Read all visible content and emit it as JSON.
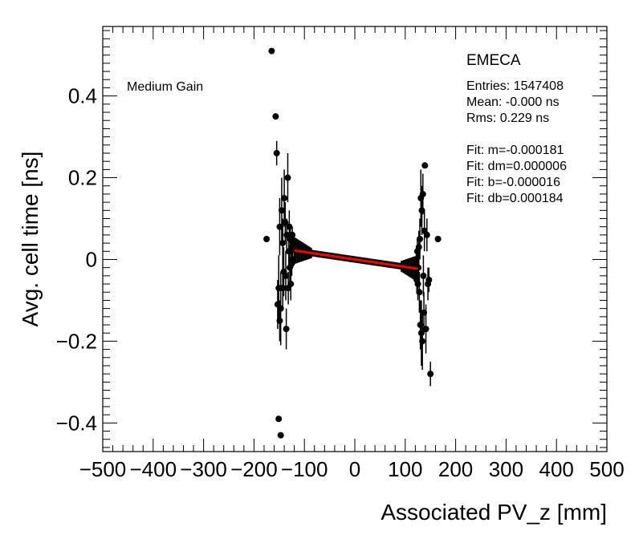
{
  "chart_data": {
    "type": "scatter",
    "title": "EMECA",
    "annotation": "Medium Gain",
    "xlabel": "Associated PV_z [mm]",
    "ylabel": "Avg. cell time [ns]",
    "xlim": [
      -500,
      500
    ],
    "ylim": [
      -0.47,
      0.57
    ],
    "x_ticks": [
      -500,
      -400,
      -300,
      -200,
      -100,
      0,
      100,
      200,
      300,
      400,
      500
    ],
    "x_tick_labels": [
      "−500",
      "−400",
      "−300",
      "−200",
      "−100",
      "0",
      "100",
      "200",
      "300",
      "400",
      "500"
    ],
    "y_ticks": [
      -0.4,
      -0.2,
      0,
      0.2,
      0.4
    ],
    "y_tick_labels": [
      "−0.4",
      "−0.2",
      "0",
      "0.2",
      "0.4"
    ],
    "stats": [
      "Entries: 1547408",
      "Mean: -0.000 ns",
      "Rms: 0.229 ns",
      "",
      "Fit: m=-0.000181",
      "Fit: dm=0.000006",
      "Fit: b=-0.000016",
      "Fit: db=0.000184"
    ],
    "fit_line": {
      "color": "#ff0000",
      "x": [
        -120,
        125
      ],
      "y": [
        0.0218,
        -0.0227
      ]
    },
    "marker_color": "#000000",
    "grid": false,
    "points": [
      {
        "x": -175,
        "y": 0.05,
        "err": 0.0
      },
      {
        "x": -165,
        "y": 0.51,
        "err": 0.0
      },
      {
        "x": -157,
        "y": 0.35,
        "err": 0.0
      },
      {
        "x": -155,
        "y": 0.26,
        "err": 0.03
      },
      {
        "x": -151,
        "y": -0.39,
        "err": 0.0
      },
      {
        "x": -147,
        "y": -0.43,
        "err": 0.0
      },
      {
        "x": -153,
        "y": -0.11,
        "err": 0.06
      },
      {
        "x": -151,
        "y": -0.07,
        "err": 0.08
      },
      {
        "x": -149,
        "y": -0.15,
        "err": 0.05
      },
      {
        "x": -149,
        "y": 0.08,
        "err": 0.07
      },
      {
        "x": -147,
        "y": -0.12,
        "err": 0.09
      },
      {
        "x": -145,
        "y": 0.12,
        "err": 0.08
      },
      {
        "x": -143,
        "y": -0.07,
        "err": 0.05
      },
      {
        "x": -143,
        "y": 0.04,
        "err": 0.06
      },
      {
        "x": -141,
        "y": -0.03,
        "err": 0.06
      },
      {
        "x": -140,
        "y": 0.15,
        "err": 0.07
      },
      {
        "x": -138,
        "y": 0.09,
        "err": 0.05
      },
      {
        "x": -137,
        "y": -0.04,
        "err": 0.06
      },
      {
        "x": -136,
        "y": -0.17,
        "err": 0.05
      },
      {
        "x": -135,
        "y": 0.06,
        "err": 0.04
      },
      {
        "x": -133,
        "y": 0.2,
        "err": 0.06
      },
      {
        "x": -132,
        "y": -0.07,
        "err": 0.04
      },
      {
        "x": -131,
        "y": 0.02,
        "err": 0.04
      },
      {
        "x": -130,
        "y": 0.08,
        "err": 0.04
      },
      {
        "x": -129,
        "y": -0.02,
        "err": 0.04
      },
      {
        "x": -128,
        "y": 0.05,
        "err": 0.03
      },
      {
        "x": -127,
        "y": -0.06,
        "err": 0.04
      },
      {
        "x": -126,
        "y": 0.03,
        "err": 0.03
      },
      {
        "x": -125,
        "y": -0.01,
        "err": 0.03
      },
      {
        "x": -124,
        "y": 0.06,
        "err": 0.02
      },
      {
        "x": -123,
        "y": 0.0,
        "err": 0.02
      },
      {
        "x": -122,
        "y": 0.04,
        "err": 0.02
      },
      {
        "x": 122,
        "y": -0.01,
        "err": 0.03
      },
      {
        "x": 123,
        "y": -0.05,
        "err": 0.03
      },
      {
        "x": 124,
        "y": 0.02,
        "err": 0.03
      },
      {
        "x": 125,
        "y": -0.06,
        "err": 0.04
      },
      {
        "x": 126,
        "y": -0.02,
        "err": 0.04
      },
      {
        "x": 127,
        "y": 0.03,
        "err": 0.04
      },
      {
        "x": 128,
        "y": -0.08,
        "err": 0.05
      },
      {
        "x": 129,
        "y": 0.05,
        "err": 0.05
      },
      {
        "x": 130,
        "y": -0.16,
        "err": 0.06
      },
      {
        "x": 131,
        "y": 0.15,
        "err": 0.07
      },
      {
        "x": 132,
        "y": -0.18,
        "err": 0.08
      },
      {
        "x": 133,
        "y": 0.12,
        "err": 0.06
      },
      {
        "x": 134,
        "y": -0.2,
        "err": 0.07
      },
      {
        "x": 135,
        "y": 0.16,
        "err": 0.05
      },
      {
        "x": 136,
        "y": -0.04,
        "err": 0.05
      },
      {
        "x": 137,
        "y": -0.13,
        "err": 0.05
      },
      {
        "x": 138,
        "y": 0.07,
        "err": 0.05
      },
      {
        "x": 139,
        "y": 0.23,
        "err": 0.0
      },
      {
        "x": 141,
        "y": -0.17,
        "err": 0.06
      },
      {
        "x": 143,
        "y": 0.06,
        "err": 0.04
      },
      {
        "x": 145,
        "y": -0.06,
        "err": 0.04
      },
      {
        "x": 147,
        "y": -0.05,
        "err": 0.03
      },
      {
        "x": 150,
        "y": -0.28,
        "err": 0.03
      },
      {
        "x": 165,
        "y": 0.05,
        "err": 0.0
      }
    ]
  }
}
